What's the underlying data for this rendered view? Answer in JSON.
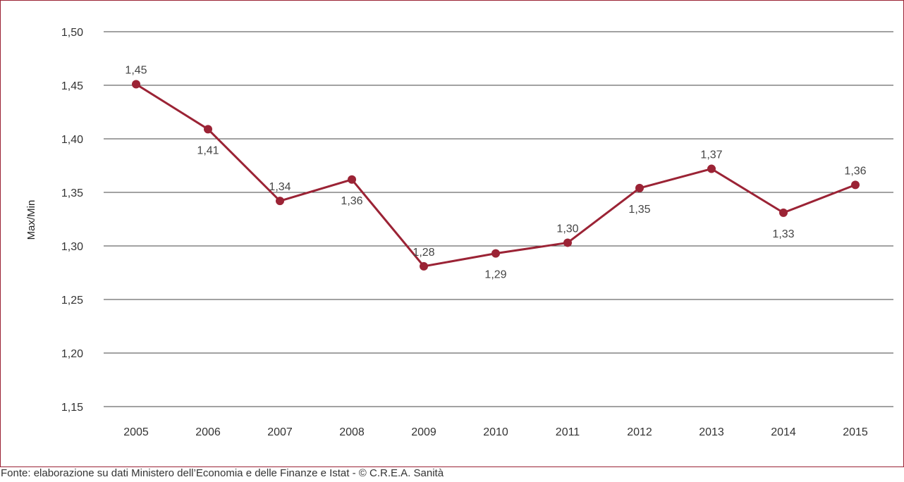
{
  "chart_data": {
    "type": "line",
    "x": [
      "2005",
      "2006",
      "2007",
      "2008",
      "2009",
      "2010",
      "2011",
      "2012",
      "2013",
      "2014",
      "2015"
    ],
    "series": [
      {
        "values": [
          1.451,
          1.409,
          1.342,
          1.362,
          1.281,
          1.293,
          1.303,
          1.354,
          1.372,
          1.331,
          1.357
        ],
        "labels": [
          "1,45",
          "1,41",
          "1,34",
          "1,36",
          "1,28",
          "1,29",
          "1,30",
          "1,35",
          "1,37",
          "1,33",
          "1,36"
        ],
        "label_positions": [
          "above",
          "below",
          "above",
          "below",
          "above",
          "below",
          "above",
          "below",
          "above",
          "below",
          "above"
        ]
      }
    ],
    "ylabel": "Max/Min",
    "xlabel": "",
    "ylim": [
      1.15,
      1.5
    ],
    "yticks": [
      1.15,
      1.2,
      1.25,
      1.3,
      1.35,
      1.4,
      1.45,
      1.5
    ],
    "ytick_labels": [
      "1,15",
      "1,20",
      "1,25",
      "1,30",
      "1,35",
      "1,40",
      "1,45",
      "1,50"
    ],
    "grid": true,
    "legend": "none",
    "line_color": "#9b2335",
    "grid_color": "#444444"
  },
  "source_note": "Fonte: elaborazione su dati Ministero dell’Economia e delle Finanze e Istat - © C.R.E.A. Sanità"
}
